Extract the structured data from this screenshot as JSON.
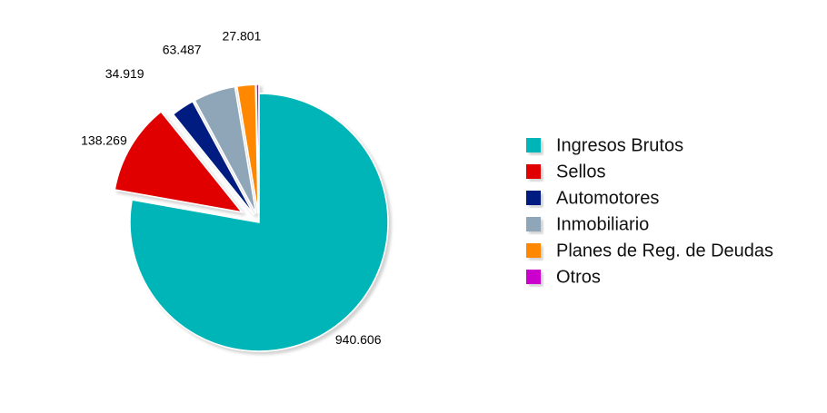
{
  "chart_data": {
    "type": "pie",
    "categories": [
      "Ingresos Brutos",
      "Sellos",
      "Automotores",
      "Inmobiliario",
      "Planes de Reg. de Deudas",
      "Otros"
    ],
    "values": [
      940.606,
      138.269,
      34.919,
      63.487,
      27.801,
      4
    ],
    "value_labels": [
      "940.606",
      "138.269",
      "34.919",
      "63.487",
      "27.801",
      null
    ],
    "colors": [
      "#00b5b8",
      "#e00000",
      "#001f80",
      "#8fa6b8",
      "#ff8800",
      "#cc00cc"
    ],
    "legend": "right"
  }
}
